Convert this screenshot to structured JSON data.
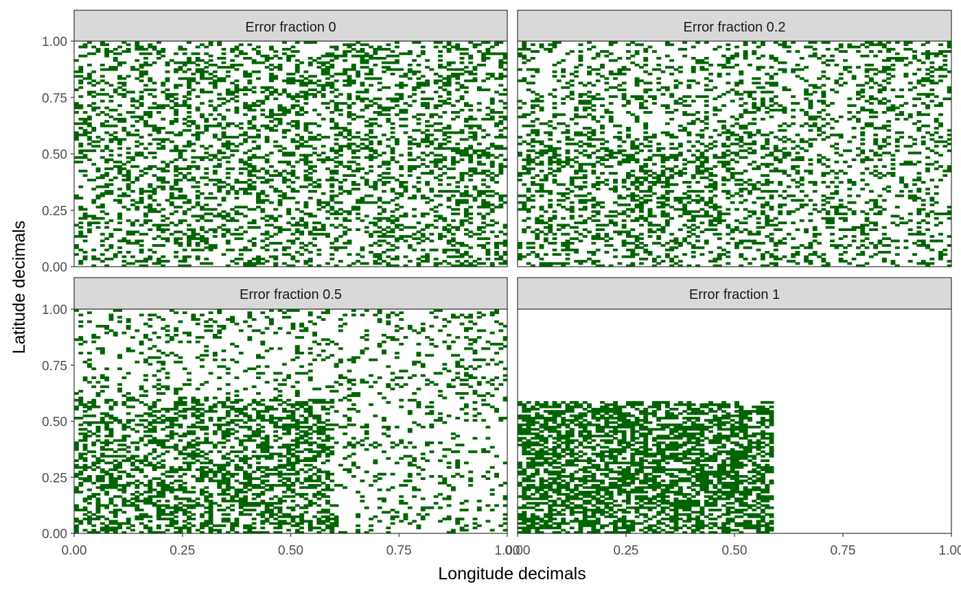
{
  "chart_data": {
    "type": "heatmap",
    "layout": "faceted 2x2 raster of occupied decimal cells",
    "xlabel": "Longitude decimals",
    "ylabel": "Latitude decimals",
    "xlim": [
      0,
      1
    ],
    "ylim": [
      0,
      1
    ],
    "x_ticks": [
      "0.00",
      "0.25",
      "0.50",
      "0.75",
      "1.00"
    ],
    "y_ticks": [
      "0.00",
      "0.25",
      "0.50",
      "0.75",
      "1.00"
    ],
    "grid": false,
    "fill_color": "#006400",
    "strip_fill": "#d9d9d9",
    "facets": [
      {
        "title": "Error fraction 0",
        "occupied_x_range": [
          0,
          1
        ],
        "occupied_y_range": [
          0,
          1
        ],
        "approx_occupied_fraction": 0.3,
        "dense_x_range": null,
        "dense_y_range": null,
        "dense_fraction": null
      },
      {
        "title": "Error fraction 0.2",
        "occupied_x_range": [
          0,
          1
        ],
        "occupied_y_range": [
          0,
          1
        ],
        "approx_occupied_fraction": 0.22,
        "dense_x_range": [
          0,
          0.6
        ],
        "dense_y_range": [
          0,
          0.6
        ],
        "dense_fraction": 0.33
      },
      {
        "title": "Error fraction 0.5",
        "occupied_x_range": [
          0,
          1
        ],
        "occupied_y_range": [
          0,
          1
        ],
        "approx_occupied_fraction": 0.15,
        "dense_x_range": [
          0,
          0.6
        ],
        "dense_y_range": [
          0,
          0.6
        ],
        "dense_fraction": 0.42
      },
      {
        "title": "Error fraction 1",
        "occupied_x_range": [
          0,
          0.59
        ],
        "occupied_y_range": [
          0,
          0.59
        ],
        "approx_occupied_fraction": 0.55,
        "dense_x_range": null,
        "dense_y_range": null,
        "dense_fraction": null
      }
    ]
  }
}
